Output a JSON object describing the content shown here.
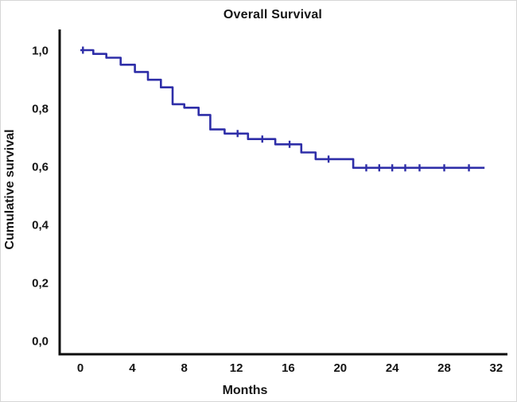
{
  "chart": {
    "title": "Overall Survival",
    "xlabel": "Months",
    "ylabel": "Cumulative survival"
  },
  "chart_data": {
    "type": "line",
    "subtype": "kaplan-meier-step",
    "title": "Overall Survival",
    "xlabel": "Months",
    "ylabel": "Cumulative survival",
    "xlim": [
      0,
      33
    ],
    "ylim": [
      0.0,
      1.07
    ],
    "grid": false,
    "legend": "none",
    "x_ticks": {
      "values": [
        0,
        4,
        8,
        12,
        16,
        20,
        24,
        28,
        32
      ],
      "labels": [
        "0",
        "4",
        "8",
        "12",
        "16",
        "20",
        "24",
        "28",
        "32"
      ]
    },
    "y_ticks": {
      "values": [
        1.0,
        0.8,
        0.6,
        0.4,
        0.2,
        0.0
      ],
      "labels": [
        "1,0",
        "0,8",
        "0,6",
        "0,4",
        "0,2",
        "0,0"
      ]
    },
    "series": [
      {
        "name": "Overall survival",
        "color": "#2E2EA8",
        "start": {
          "time": 0.0,
          "survival": 1.0
        },
        "steps": [
          {
            "time": 1.0,
            "survival": 0.987
          },
          {
            "time": 2.0,
            "survival": 0.974
          },
          {
            "time": 3.1,
            "survival": 0.95
          },
          {
            "time": 4.2,
            "survival": 0.925
          },
          {
            "time": 5.2,
            "survival": 0.898
          },
          {
            "time": 6.2,
            "survival": 0.872
          },
          {
            "time": 7.1,
            "survival": 0.814
          },
          {
            "time": 8.0,
            "survival": 0.802
          },
          {
            "time": 9.1,
            "survival": 0.777
          },
          {
            "time": 10.0,
            "survival": 0.727
          },
          {
            "time": 11.1,
            "survival": 0.713
          },
          {
            "time": 12.9,
            "survival": 0.694
          },
          {
            "time": 15.0,
            "survival": 0.676
          },
          {
            "time": 17.0,
            "survival": 0.648
          },
          {
            "time": 18.1,
            "survival": 0.625
          },
          {
            "time": 21.0,
            "survival": 0.595
          }
        ],
        "censor_marks": [
          {
            "time": 0.2,
            "survival": 1.0
          },
          {
            "time": 12.1,
            "survival": 0.713
          },
          {
            "time": 14.0,
            "survival": 0.694
          },
          {
            "time": 16.1,
            "survival": 0.676
          },
          {
            "time": 19.1,
            "survival": 0.625
          },
          {
            "time": 22.0,
            "survival": 0.595
          },
          {
            "time": 23.0,
            "survival": 0.595
          },
          {
            "time": 24.0,
            "survival": 0.595
          },
          {
            "time": 25.0,
            "survival": 0.595
          },
          {
            "time": 26.1,
            "survival": 0.595
          },
          {
            "time": 28.0,
            "survival": 0.595
          },
          {
            "time": 29.9,
            "survival": 0.595
          }
        ],
        "end_time": 31.1
      }
    ],
    "colors": {
      "curve": "#2E2EA8",
      "axis": "#0d0d0d",
      "text": "#141414",
      "background": "#ffffff"
    }
  }
}
